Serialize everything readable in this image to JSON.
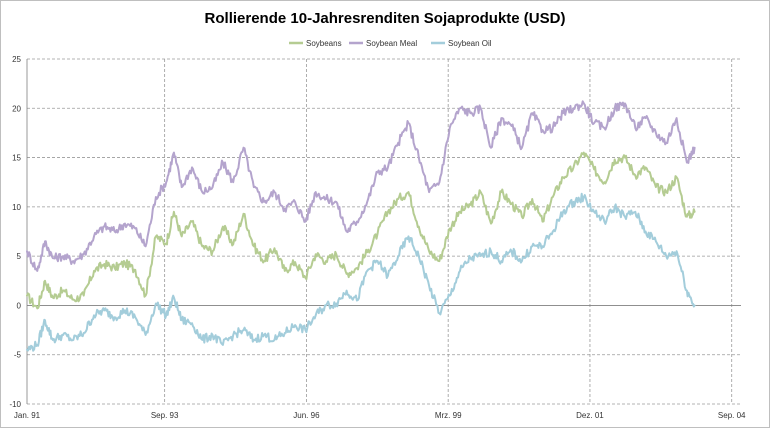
{
  "chart_data": {
    "type": "line",
    "title": "Rollierende 10-Jahresrenditen Sojaprodukte (USD)",
    "xlabel": "",
    "ylabel": "",
    "ylim": [
      -10,
      25
    ],
    "yticks": [
      -10,
      -5,
      0,
      5,
      10,
      15,
      20,
      25
    ],
    "xlim": [
      1991.0,
      2004.85
    ],
    "xticks": [
      {
        "label": "Jan. 91",
        "x": 1991.0
      },
      {
        "label": "Sep. 93",
        "x": 1993.67
      },
      {
        "label": "Jun. 96",
        "x": 1996.42
      },
      {
        "label": "Mrz. 99",
        "x": 1999.17
      },
      {
        "label": "Dez. 01",
        "x": 2001.92
      },
      {
        "label": "Sep. 04",
        "x": 2004.67
      }
    ],
    "legend_position": "top-center",
    "grid": true,
    "series": [
      {
        "name": "Soybeans",
        "color": "#b5cc92",
        "x": [
          1991.0,
          1991.2,
          1991.35,
          1991.5,
          1991.7,
          1991.9,
          1992.1,
          1992.3,
          1992.5,
          1992.7,
          1992.9,
          1993.1,
          1993.3,
          1993.5,
          1993.7,
          1993.85,
          1994.0,
          1994.2,
          1994.4,
          1994.6,
          1994.8,
          1995.0,
          1995.2,
          1995.4,
          1995.6,
          1995.8,
          1996.0,
          1996.2,
          1996.4,
          1996.6,
          1996.8,
          1997.0,
          1997.2,
          1997.4,
          1997.6,
          1997.8,
          1998.0,
          1998.2,
          1998.4,
          1998.6,
          1998.8,
          1999.0,
          1999.2,
          1999.4,
          1999.6,
          1999.8,
          2000.0,
          2000.2,
          2000.4,
          2000.6,
          2000.8,
          2001.0,
          2001.2,
          2001.4,
          2001.6,
          2001.8,
          2002.0,
          2002.2,
          2002.4,
          2002.6,
          2002.8,
          2003.0,
          2003.2,
          2003.4,
          2003.6,
          2003.8,
          2003.95
        ],
        "values": [
          1.0,
          -0.3,
          2.5,
          0.8,
          1.5,
          0.6,
          1.0,
          3.5,
          4.2,
          3.8,
          4.3,
          3.6,
          1.0,
          7.0,
          6.3,
          9.5,
          7.0,
          8.5,
          6.0,
          5.5,
          8.0,
          6.2,
          9.3,
          6.0,
          4.5,
          5.8,
          3.5,
          4.4,
          2.8,
          5.2,
          4.5,
          5.2,
          3.2,
          3.8,
          5.4,
          7.3,
          9.5,
          10.8,
          11.5,
          8.0,
          5.5,
          4.5,
          7.8,
          9.5,
          10.2,
          11.5,
          8.3,
          11.5,
          10.3,
          9.0,
          10.8,
          8.5,
          11.0,
          13.0,
          14.0,
          15.5,
          13.8,
          12.5,
          14.8,
          15.0,
          13.2,
          14.0,
          12.0,
          11.5,
          13.0,
          9.0,
          9.5
        ]
      },
      {
        "name": "Soybean Meal",
        "color": "#b4a4cd",
        "x": [
          1991.0,
          1991.2,
          1991.35,
          1991.5,
          1991.7,
          1991.9,
          1992.1,
          1992.3,
          1992.5,
          1992.7,
          1992.9,
          1993.1,
          1993.3,
          1993.5,
          1993.7,
          1993.85,
          1994.0,
          1994.2,
          1994.4,
          1994.6,
          1994.8,
          1995.0,
          1995.2,
          1995.4,
          1995.6,
          1995.8,
          1996.0,
          1996.2,
          1996.4,
          1996.6,
          1996.8,
          1997.0,
          1997.2,
          1997.4,
          1997.6,
          1997.8,
          1998.0,
          1998.2,
          1998.4,
          1998.6,
          1998.8,
          1999.0,
          1999.2,
          1999.4,
          1999.6,
          1999.8,
          2000.0,
          2000.2,
          2000.4,
          2000.6,
          2000.8,
          2001.0,
          2001.2,
          2001.4,
          2001.6,
          2001.8,
          2002.0,
          2002.2,
          2002.4,
          2002.6,
          2002.8,
          2003.0,
          2003.2,
          2003.4,
          2003.6,
          2003.8,
          2003.95
        ],
        "values": [
          5.5,
          3.5,
          6.5,
          4.8,
          5.0,
          4.5,
          5.2,
          7.0,
          8.0,
          7.5,
          8.3,
          7.8,
          6.0,
          11.0,
          12.5,
          15.5,
          12.0,
          14.0,
          11.5,
          12.0,
          14.5,
          12.5,
          16.0,
          12.0,
          10.5,
          11.5,
          9.8,
          10.5,
          8.5,
          11.5,
          10.8,
          10.5,
          7.5,
          8.5,
          10.5,
          13.5,
          14.0,
          16.5,
          18.5,
          15.0,
          11.5,
          12.5,
          18.0,
          20.0,
          19.5,
          20.0,
          16.0,
          19.0,
          18.2,
          16.0,
          19.5,
          17.8,
          18.0,
          19.5,
          20.0,
          20.5,
          18.5,
          18.0,
          20.0,
          20.5,
          18.0,
          19.0,
          17.5,
          16.5,
          19.0,
          14.5,
          16.0
        ]
      },
      {
        "name": "Soybean Oil",
        "color": "#a3cddb",
        "x": [
          1991.0,
          1991.2,
          1991.35,
          1991.5,
          1991.7,
          1991.9,
          1992.1,
          1992.3,
          1992.5,
          1992.7,
          1992.9,
          1993.1,
          1993.3,
          1993.5,
          1993.7,
          1993.85,
          1994.0,
          1994.2,
          1994.4,
          1994.6,
          1994.8,
          1995.0,
          1995.2,
          1995.4,
          1995.6,
          1995.8,
          1996.0,
          1996.2,
          1996.4,
          1996.6,
          1996.8,
          1997.0,
          1997.2,
          1997.4,
          1997.6,
          1997.8,
          1998.0,
          1998.2,
          1998.4,
          1998.6,
          1998.8,
          1999.0,
          1999.2,
          1999.4,
          1999.6,
          1999.8,
          2000.0,
          2000.2,
          2000.4,
          2000.6,
          2000.8,
          2001.0,
          2001.2,
          2001.4,
          2001.6,
          2001.8,
          2002.0,
          2002.2,
          2002.4,
          2002.6,
          2002.8,
          2003.0,
          2003.2,
          2003.4,
          2003.6,
          2003.8,
          2003.95
        ],
        "values": [
          -4.5,
          -4.0,
          -1.5,
          -3.5,
          -3.0,
          -3.5,
          -2.8,
          -1.0,
          -0.5,
          -1.2,
          -0.5,
          -1.2,
          -3.0,
          0.2,
          -1.0,
          0.8,
          -1.5,
          -1.8,
          -3.5,
          -3.0,
          -4.0,
          -3.0,
          -2.5,
          -3.5,
          -3.0,
          -3.5,
          -2.8,
          -2.0,
          -2.5,
          -1.0,
          0.0,
          0.2,
          1.5,
          0.5,
          3.5,
          4.5,
          3.0,
          5.0,
          7.0,
          5.0,
          2.0,
          -0.8,
          1.0,
          3.5,
          4.8,
          5.0,
          5.5,
          4.5,
          5.5,
          4.5,
          6.0,
          6.0,
          7.5,
          9.5,
          10.5,
          11.0,
          9.5,
          8.5,
          10.0,
          9.0,
          9.5,
          7.5,
          6.5,
          5.0,
          5.5,
          1.5,
          0.0
        ]
      }
    ]
  }
}
